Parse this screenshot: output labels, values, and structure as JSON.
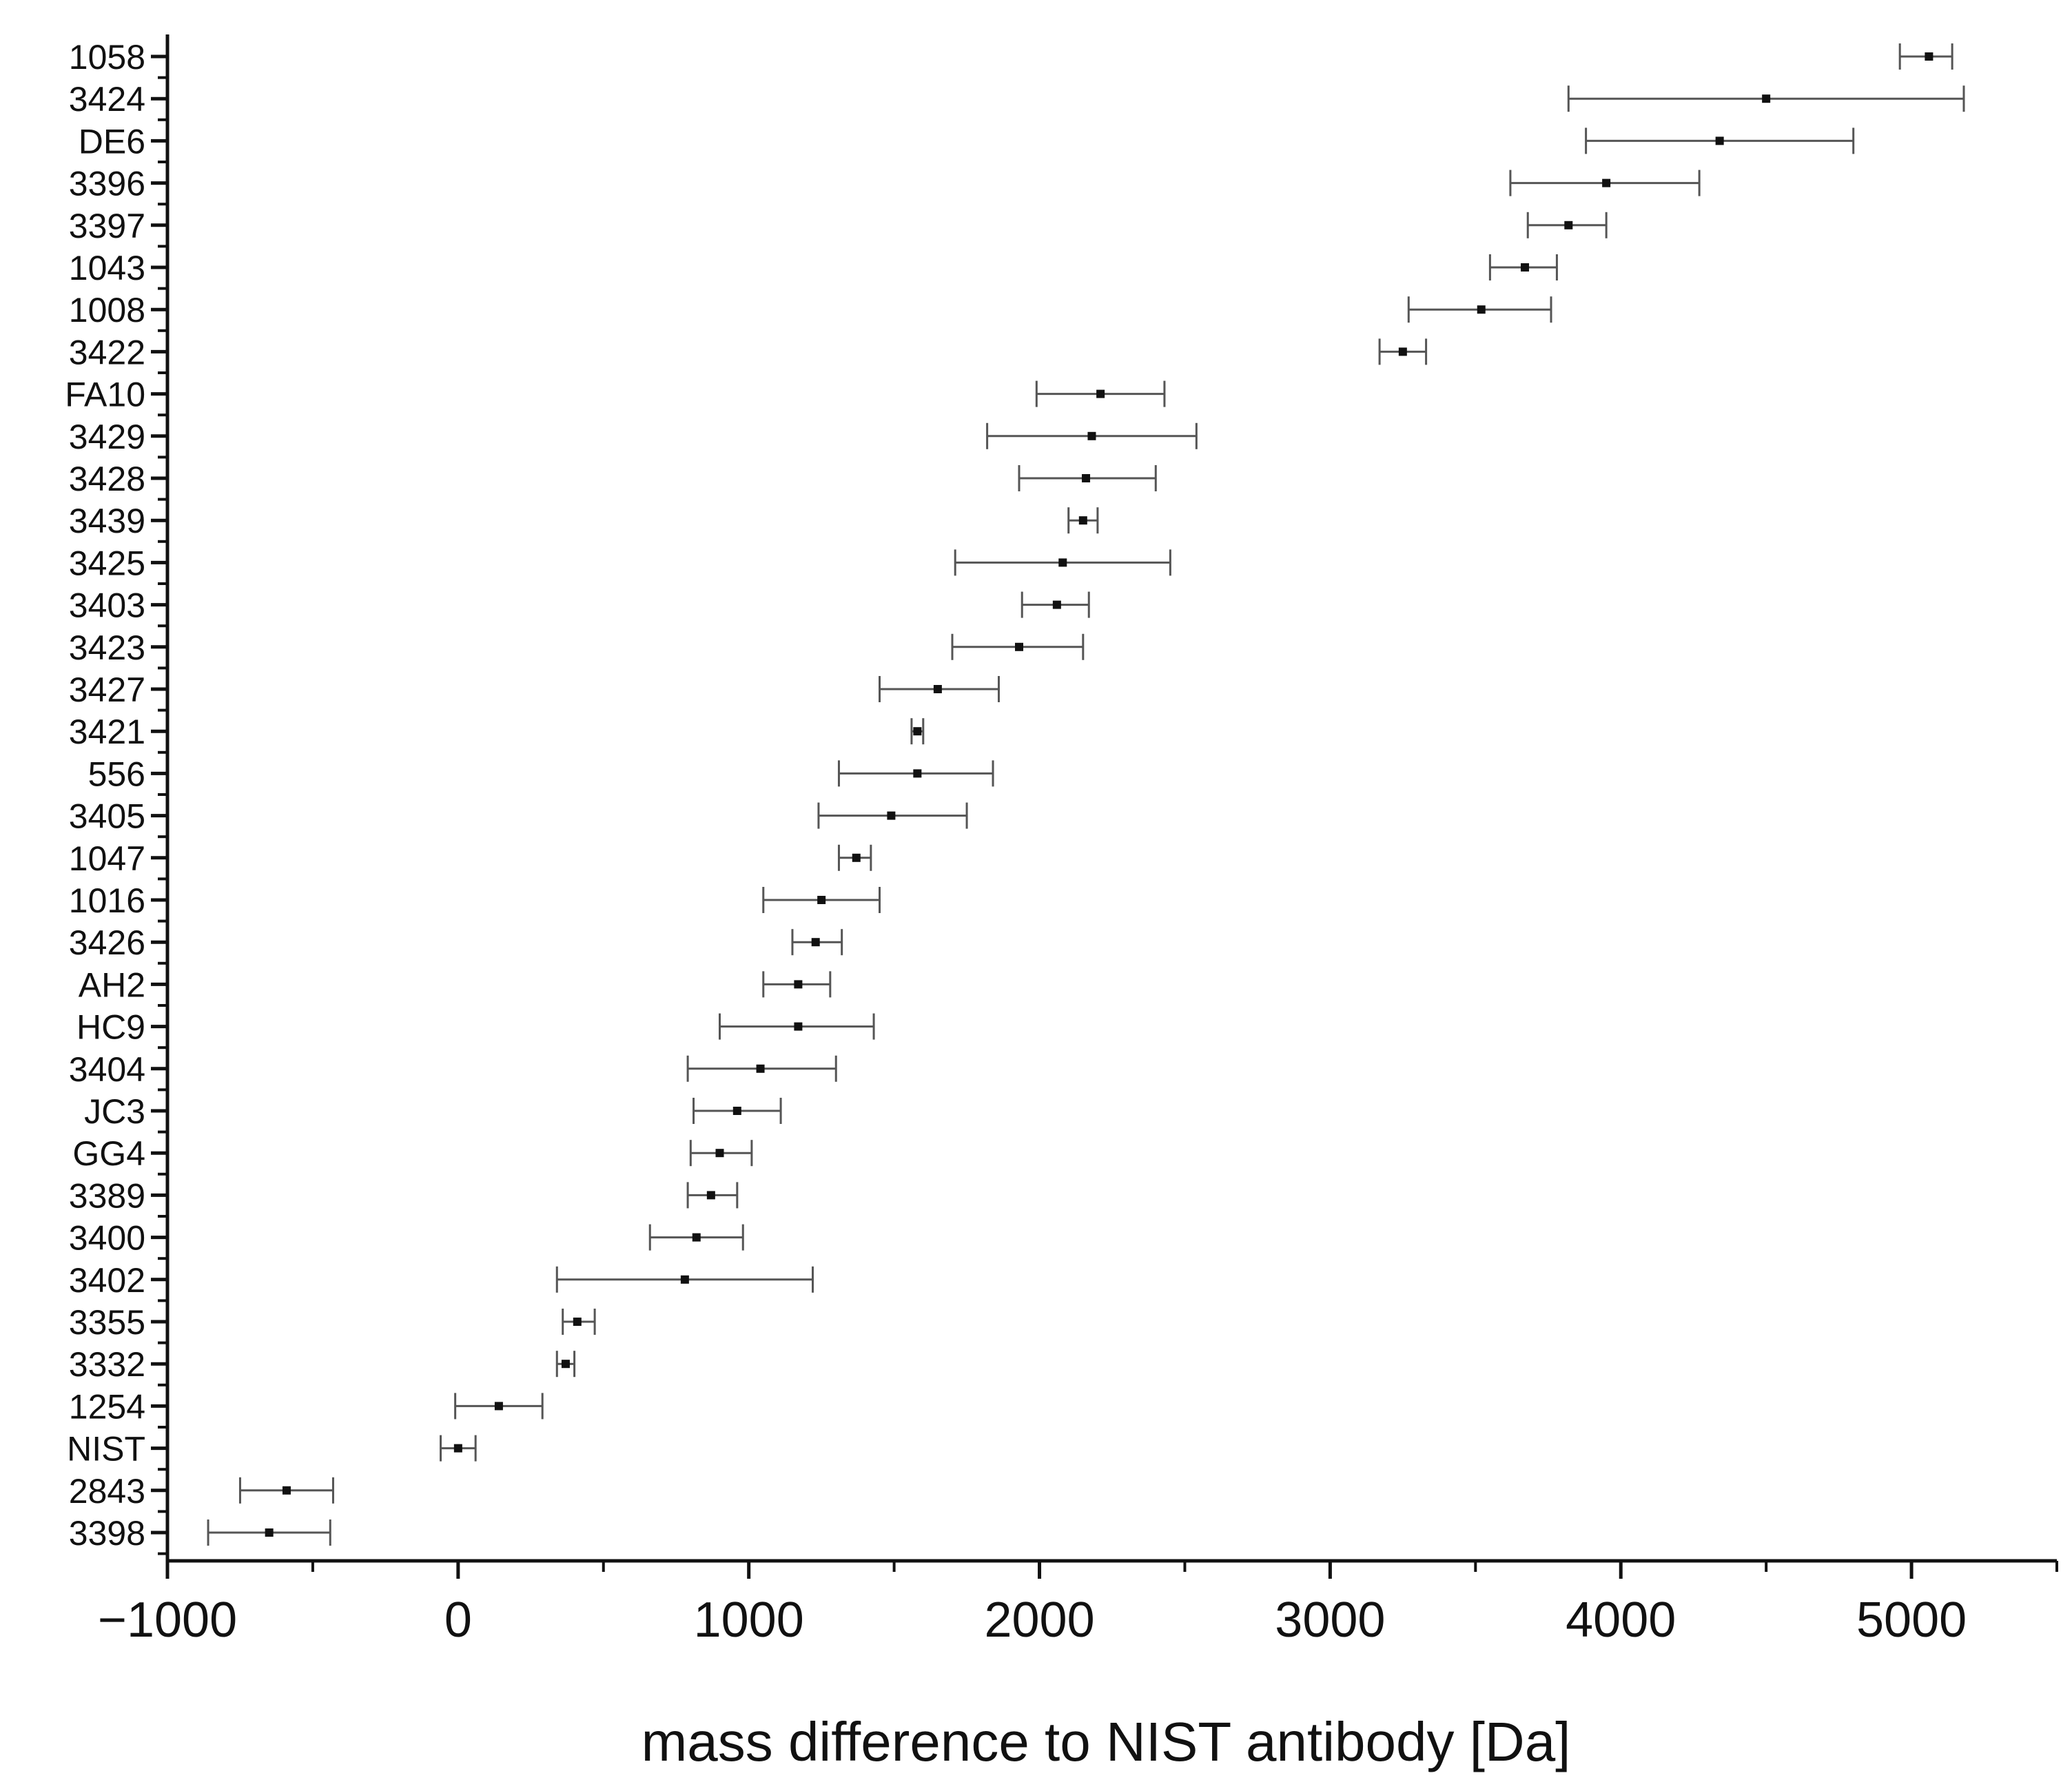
{
  "chart_data": {
    "type": "scatter",
    "orientation": "horizontal-error-bars",
    "title": "",
    "xlabel": "mass difference to NIST antibody [Da]",
    "ylabel": "",
    "xlim": [
      -1000,
      5500
    ],
    "xticks": [
      -1000,
      0,
      1000,
      2000,
      3000,
      4000,
      5000
    ],
    "xtick_labels": [
      "−1000",
      "0",
      "1000",
      "2000",
      "3000",
      "4000",
      "5000"
    ],
    "grid": false,
    "legend": "none",
    "colors": {
      "axis": "#111111",
      "error_bar": "#555555",
      "marker": "#111111"
    },
    "series": [
      {
        "name": "mass difference",
        "points": [
          {
            "label": "1058",
            "value": 5060,
            "low": 4960,
            "high": 5140
          },
          {
            "label": "3424",
            "value": 4500,
            "low": 3820,
            "high": 5180
          },
          {
            "label": "DE6",
            "value": 4340,
            "low": 3880,
            "high": 4800
          },
          {
            "label": "3396",
            "value": 3950,
            "low": 3620,
            "high": 4270
          },
          {
            "label": "3397",
            "value": 3820,
            "low": 3680,
            "high": 3950
          },
          {
            "label": "1043",
            "value": 3670,
            "low": 3550,
            "high": 3780
          },
          {
            "label": "1008",
            "value": 3520,
            "low": 3270,
            "high": 3760
          },
          {
            "label": "3422",
            "value": 3250,
            "low": 3170,
            "high": 3330
          },
          {
            "label": "FA10",
            "value": 2210,
            "low": 1990,
            "high": 2430
          },
          {
            "label": "3429",
            "value": 2180,
            "low": 1820,
            "high": 2540
          },
          {
            "label": "3428",
            "value": 2160,
            "low": 1930,
            "high": 2400
          },
          {
            "label": "3439",
            "value": 2150,
            "low": 2100,
            "high": 2200
          },
          {
            "label": "3425",
            "value": 2080,
            "low": 1710,
            "high": 2450
          },
          {
            "label": "3403",
            "value": 2060,
            "low": 1940,
            "high": 2170
          },
          {
            "label": "3423",
            "value": 1930,
            "low": 1700,
            "high": 2150
          },
          {
            "label": "3427",
            "value": 1650,
            "low": 1450,
            "high": 1860
          },
          {
            "label": "3421",
            "value": 1580,
            "low": 1560,
            "high": 1600
          },
          {
            "label": "556",
            "value": 1580,
            "low": 1310,
            "high": 1840
          },
          {
            "label": "3405",
            "value": 1490,
            "low": 1240,
            "high": 1750
          },
          {
            "label": "1047",
            "value": 1370,
            "low": 1310,
            "high": 1420
          },
          {
            "label": "1016",
            "value": 1250,
            "low": 1050,
            "high": 1450
          },
          {
            "label": "3426",
            "value": 1230,
            "low": 1150,
            "high": 1320
          },
          {
            "label": "AH2",
            "value": 1170,
            "low": 1050,
            "high": 1280
          },
          {
            "label": "HC9",
            "value": 1170,
            "low": 900,
            "high": 1430
          },
          {
            "label": "3404",
            "value": 1040,
            "low": 790,
            "high": 1300
          },
          {
            "label": "JC3",
            "value": 960,
            "low": 810,
            "high": 1110
          },
          {
            "label": "GG4",
            "value": 900,
            "low": 800,
            "high": 1010
          },
          {
            "label": "3389",
            "value": 870,
            "low": 790,
            "high": 960
          },
          {
            "label": "3400",
            "value": 820,
            "low": 660,
            "high": 980
          },
          {
            "label": "3402",
            "value": 780,
            "low": 340,
            "high": 1220
          },
          {
            "label": "3355",
            "value": 410,
            "low": 360,
            "high": 470
          },
          {
            "label": "3332",
            "value": 370,
            "low": 340,
            "high": 400
          },
          {
            "label": "1254",
            "value": 140,
            "low": -10,
            "high": 290
          },
          {
            "label": "NIST",
            "value": 0,
            "low": -60,
            "high": 60
          },
          {
            "label": "2843",
            "value": -590,
            "low": -750,
            "high": -430
          },
          {
            "label": "3398",
            "value": -650,
            "low": -860,
            "high": -440
          }
        ]
      }
    ]
  }
}
